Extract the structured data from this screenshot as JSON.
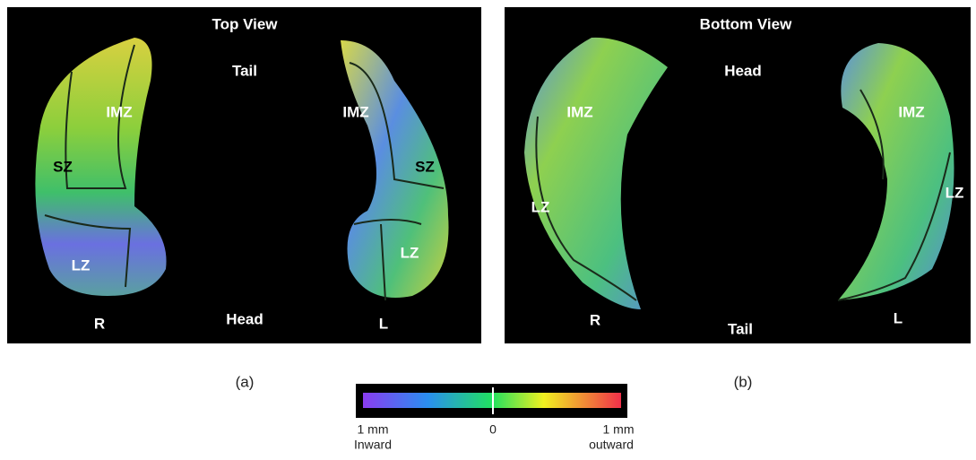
{
  "panels": [
    {
      "title": "Top View",
      "caption": "(a)",
      "labels": [
        "Tail",
        "IMZ",
        "IMZ",
        "SZ",
        "SZ",
        "LZ",
        "LZ",
        "R",
        "Head",
        "L"
      ]
    },
    {
      "title": "Bottom View",
      "caption": "(b)",
      "labels": [
        "Head",
        "IMZ",
        "IMZ",
        "LZ",
        "LZ",
        "R",
        "Tail",
        "L"
      ]
    }
  ],
  "colorbar": {
    "min_label": [
      "1 mm",
      "Inward"
    ],
    "mid_label": "0",
    "max_label": [
      "1 mm",
      "outward"
    ]
  }
}
